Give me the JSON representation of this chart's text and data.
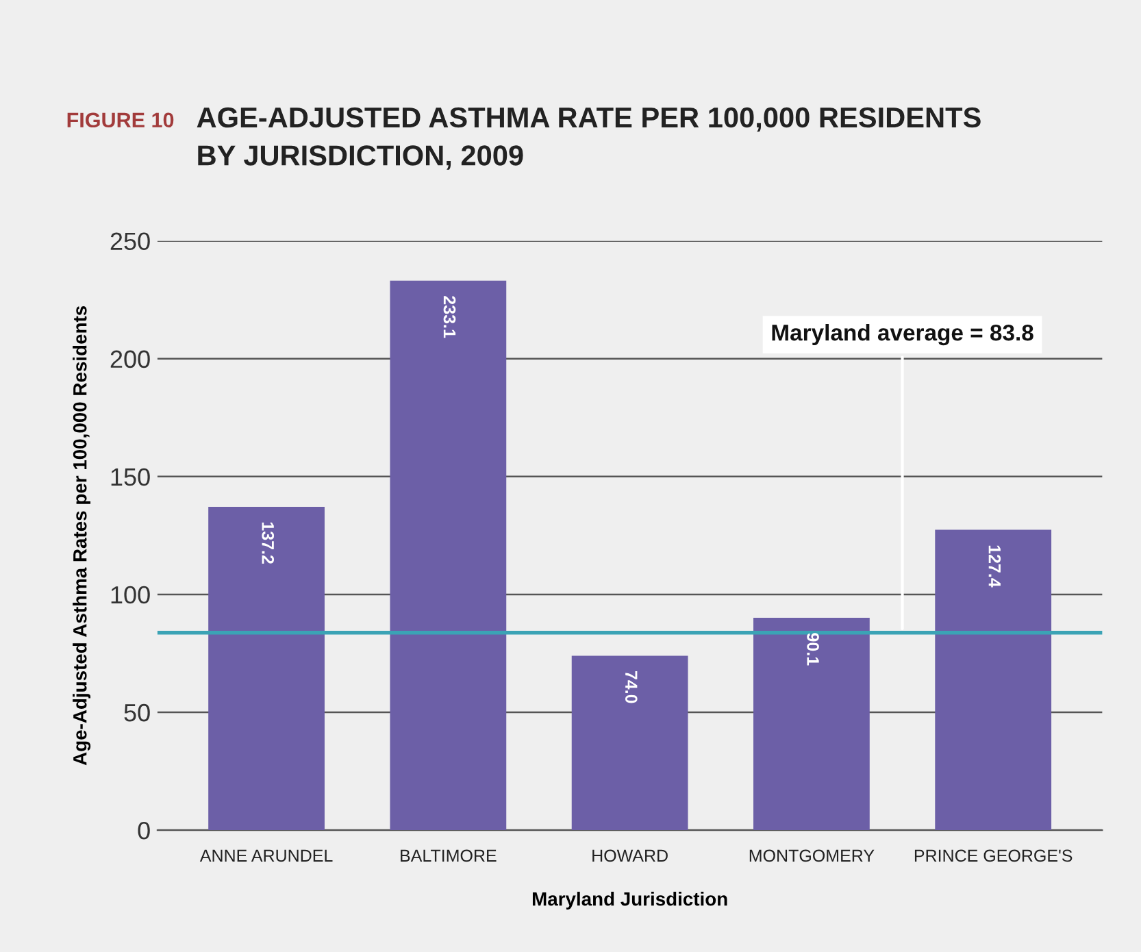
{
  "chart_data": {
    "type": "bar",
    "title": "AGE-ADJUSTED ASTHMA RATE PER 100,000 RESIDENTS\nBY JURISDICTION, 2009",
    "annotations": [
      "FIGURE 10"
    ],
    "xlabel": "Maryland Jurisdiction",
    "ylabel": "Age-Adjusted Asthma Rates per 100,000 Residents",
    "categories": [
      "ANNE ARUNDEL",
      "BALTIMORE",
      "HOWARD",
      "MONTGOMERY",
      "PRINCE GEORGE'S"
    ],
    "values": [
      137.2,
      233.1,
      74.0,
      90.1,
      127.4
    ],
    "value_labels": [
      "137.2",
      "233.1",
      "74.0",
      "90.1",
      "127.4"
    ],
    "color": "#6c5fa7",
    "ylim": [
      0,
      250
    ],
    "yticks": [
      0,
      50,
      100,
      150,
      200,
      250
    ],
    "grid": "y",
    "ref_lines": [
      {
        "axis": "y",
        "value": 83.8,
        "label": "Maryland average = 83.8",
        "color": "#3ba3b5"
      }
    ]
  }
}
